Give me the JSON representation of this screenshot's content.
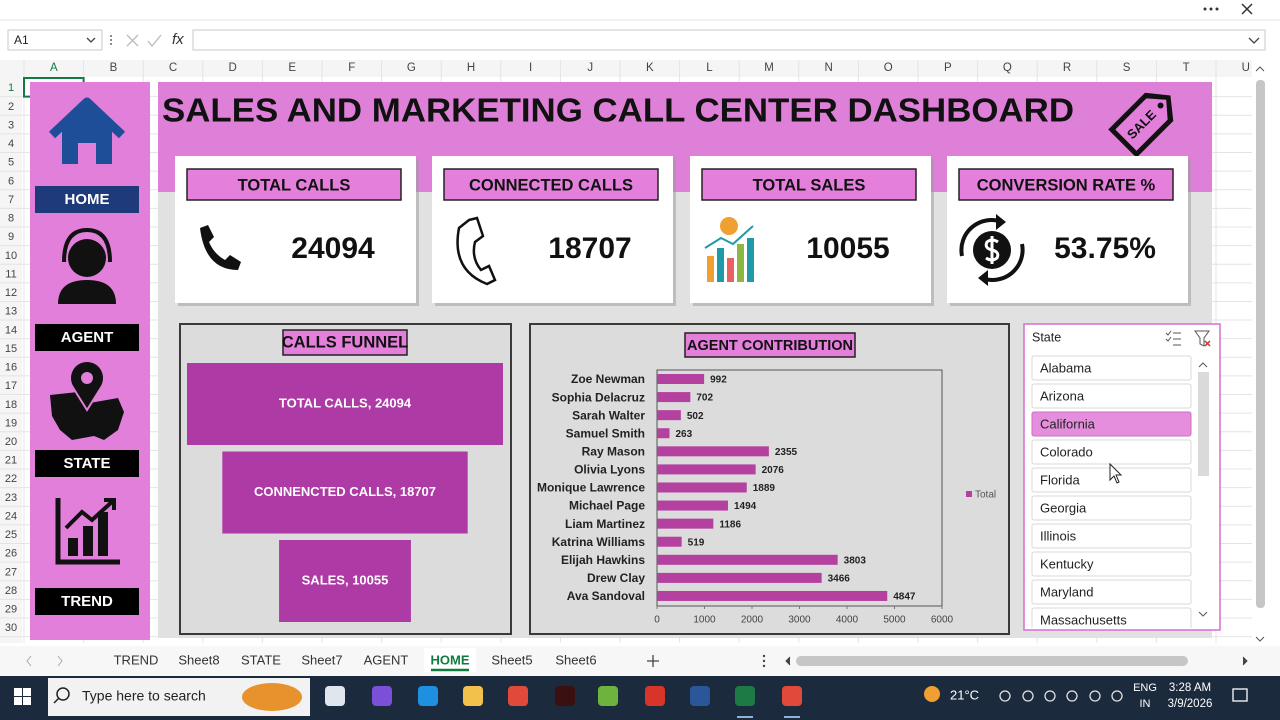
{
  "excel": {
    "name_box": "A1",
    "fx": "fx",
    "columns": [
      "A",
      "B",
      "C",
      "D",
      "E",
      "F",
      "G",
      "H",
      "I",
      "J",
      "K",
      "L",
      "M",
      "N",
      "O",
      "P",
      "Q",
      "R",
      "S",
      "T",
      "U"
    ],
    "rows": [
      1,
      2,
      3,
      4,
      5,
      6,
      7,
      8,
      9,
      10,
      11,
      12,
      13,
      14,
      15,
      16,
      17,
      18,
      19,
      20,
      21,
      22,
      23,
      24,
      25,
      26,
      27,
      28,
      29,
      30
    ],
    "sheet_tabs": [
      "TREND",
      "Sheet8",
      "STATE",
      "Sheet7",
      "AGENT",
      "HOME",
      "Sheet5",
      "Sheet6"
    ],
    "active_tab": 5
  },
  "dashboard": {
    "title": "SALES AND MARKETING CALL CENTER DASHBOARD",
    "tag_label": "SALE",
    "nav": [
      "HOME",
      "AGENT",
      "STATE",
      "TREND"
    ],
    "kpis": [
      {
        "label": "TOTAL CALLS",
        "value": "24094"
      },
      {
        "label": "CONNECTED CALLS",
        "value": "18707"
      },
      {
        "label": "TOTAL SALES",
        "value": "10055"
      },
      {
        "label": "CONVERSION RATE %",
        "value": "53.75%"
      }
    ]
  },
  "chart_data": [
    {
      "type": "funnel",
      "title": "CALLS FUNNEL",
      "values": [
        24094,
        18707,
        10055
      ],
      "value_labels": [
        "TOTAL CALLS, 24094",
        "CONNENCTED CALLS, 18707",
        "SALES, 10055"
      ],
      "color": "#ae3aa6"
    },
    {
      "type": "bar",
      "orientation": "horizontal",
      "title": "AGENT CONTRIBUTION",
      "categories": [
        "Zoe Newman",
        "Sophia Delacruz",
        "Sarah Walter",
        "Samuel Smith",
        "Ray Mason",
        "Olivia Lyons",
        "Monique Lawrence",
        "Michael Page",
        "Liam Martinez",
        "Katrina Williams",
        "Elijah Hawkins",
        "Drew Clay",
        "Ava Sandoval"
      ],
      "series": [
        {
          "name": "Total",
          "color": "#b4409f",
          "values": [
            992,
            702,
            502,
            263,
            2355,
            2076,
            1889,
            1494,
            1186,
            519,
            3803,
            3466,
            4847
          ]
        }
      ],
      "xlim": [
        0,
        6000
      ],
      "xticks": [
        0,
        1000,
        2000,
        3000,
        4000,
        5000,
        6000
      ],
      "legend": "right"
    }
  ],
  "slicer": {
    "title": "State",
    "items": [
      "Alabama",
      "Arizona",
      "California",
      "Colorado",
      "Florida",
      "Georgia",
      "Illinois",
      "Kentucky",
      "Maryland",
      "Massachusetts"
    ],
    "selected": 2
  },
  "taskbar": {
    "search": "Type here to search",
    "weather": "21°C",
    "language": "ENG",
    "region": "IN",
    "time": "3:28 AM",
    "date": "3/9/2026"
  }
}
